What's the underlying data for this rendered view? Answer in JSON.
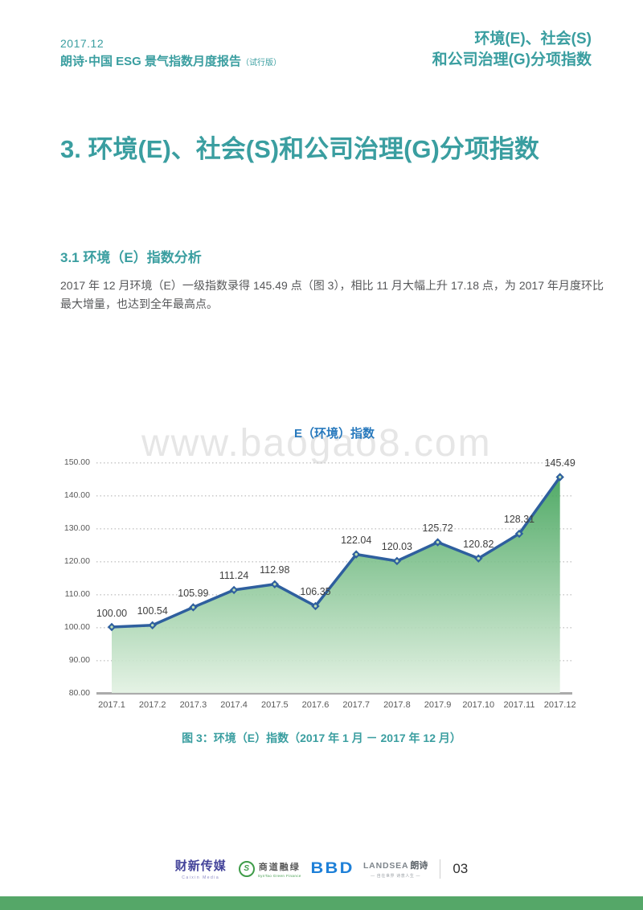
{
  "header": {
    "date": "2017.12",
    "report_title": "朗诗·中国 ESG 景气指数月度报告",
    "report_edition": "（试行版）",
    "right_line1": "环境(E)、社会(S)",
    "right_line2": "和公司治理(G)分项指数"
  },
  "main": {
    "title": "3. 环境(E)、社会(S)和公司治理(G)分项指数",
    "section_heading": "3.1 环境（E）指数分析",
    "paragraph": "2017 年 12 月环境（E）一级指数录得 145.49 点（图 3），相比 11 月大幅上升 17.18 点，为 2017 年月度环比最大增量，也达到全年最高点。"
  },
  "chart": {
    "title": "E（环境）指数",
    "watermark": "www.baogao8.com"
  },
  "chart_data": {
    "type": "area",
    "title": "E（环境）指数",
    "categories": [
      "2017.1",
      "2017.2",
      "2017.3",
      "2017.4",
      "2017.5",
      "2017.6",
      "2017.7",
      "2017.8",
      "2017.9",
      "2017.10",
      "2017.11",
      "2017.12"
    ],
    "values": [
      100.0,
      100.54,
      105.99,
      111.24,
      112.98,
      106.35,
      122.04,
      120.03,
      125.72,
      120.82,
      128.31,
      145.49
    ],
    "labels": [
      "100.00",
      "100.54",
      "105.99",
      "111.24",
      "112.98",
      "106.35",
      "122.04",
      "120.03",
      "125.72",
      "120.82",
      "128.31",
      "145.49"
    ],
    "xlabel": "",
    "ylabel": "",
    "ylim": [
      80,
      150
    ],
    "ytick_step": 10,
    "grid": true,
    "legend_position": "none",
    "colors": {
      "line": "#2E5F9E",
      "marker": "#2E5F9E",
      "marker_center": "#BEE0B4",
      "fill_top": "#3EA156",
      "fill_bottom": "#E2F1E2"
    }
  },
  "caption": {
    "text": "图 3：环境（E）指数（2017 年 1 月 － 2017 年 12 月）"
  },
  "footer": {
    "logos": {
      "caixin": {
        "text": "财新传媒",
        "subtext": "Caixin Media"
      },
      "syntao": {
        "icon_letter": "S",
        "text": "商道融绿",
        "subtext": "SynTao Green Finance"
      },
      "bbd": {
        "text": "BBD"
      },
      "landsea": {
        "text": "LANDSEA",
        "text2": "朗诗",
        "subtext": "— 自在世界 诗意人生 —"
      }
    },
    "page_number": "03"
  },
  "colors": {
    "accent_teal": "#3A9EA0",
    "chart_title_blue": "#2879BD",
    "bottom_bar_green": "#55A768"
  }
}
